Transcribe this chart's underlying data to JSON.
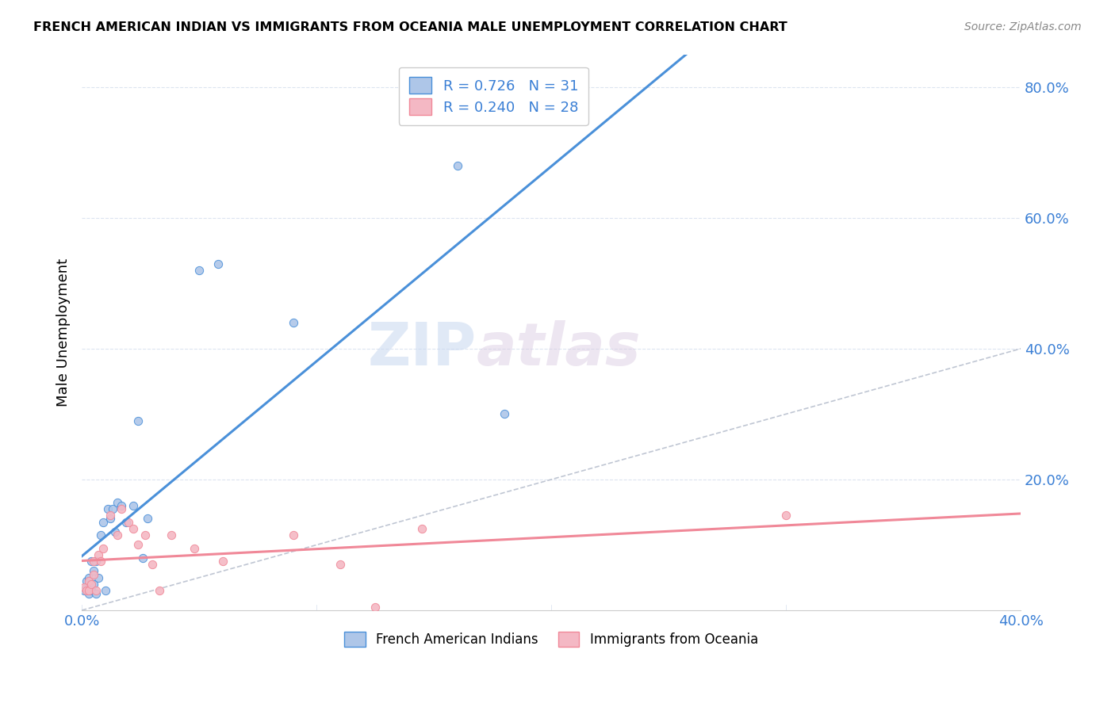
{
  "title": "FRENCH AMERICAN INDIAN VS IMMIGRANTS FROM OCEANIA MALE UNEMPLOYMENT CORRELATION CHART",
  "source": "Source: ZipAtlas.com",
  "ylabel": "Male Unemployment",
  "xlim": [
    0.0,
    0.4
  ],
  "ylim": [
    0.0,
    0.85
  ],
  "xticks": [
    0.0,
    0.1,
    0.2,
    0.3,
    0.4
  ],
  "xticklabels": [
    "0.0%",
    "",
    "",
    "",
    "40.0%"
  ],
  "yticks": [
    0.2,
    0.4,
    0.6,
    0.8
  ],
  "yticklabels": [
    "20.0%",
    "40.0%",
    "60.0%",
    "80.0%"
  ],
  "R_blue": 0.726,
  "N_blue": 31,
  "R_pink": 0.24,
  "N_pink": 28,
  "color_blue": "#aec6e8",
  "color_pink": "#f4b8c4",
  "line_blue": "#4a90d9",
  "line_pink": "#f08898",
  "line_diag": "#b0b8c8",
  "legend_text_color": "#3a7fd5",
  "blue_x": [
    0.001,
    0.002,
    0.002,
    0.003,
    0.003,
    0.004,
    0.004,
    0.005,
    0.005,
    0.006,
    0.006,
    0.007,
    0.008,
    0.009,
    0.01,
    0.011,
    0.012,
    0.013,
    0.014,
    0.015,
    0.017,
    0.019,
    0.022,
    0.024,
    0.026,
    0.028,
    0.05,
    0.058,
    0.09,
    0.16,
    0.18
  ],
  "blue_y": [
    0.03,
    0.035,
    0.045,
    0.025,
    0.05,
    0.03,
    0.075,
    0.04,
    0.06,
    0.025,
    0.075,
    0.05,
    0.115,
    0.135,
    0.03,
    0.155,
    0.14,
    0.155,
    0.12,
    0.165,
    0.16,
    0.135,
    0.16,
    0.29,
    0.08,
    0.14,
    0.52,
    0.53,
    0.44,
    0.68,
    0.3
  ],
  "pink_x": [
    0.001,
    0.002,
    0.003,
    0.003,
    0.004,
    0.005,
    0.005,
    0.006,
    0.007,
    0.008,
    0.009,
    0.012,
    0.015,
    0.017,
    0.02,
    0.022,
    0.024,
    0.027,
    0.03,
    0.033,
    0.038,
    0.048,
    0.06,
    0.09,
    0.11,
    0.125,
    0.145,
    0.3
  ],
  "pink_y": [
    0.035,
    0.03,
    0.045,
    0.03,
    0.04,
    0.075,
    0.055,
    0.03,
    0.085,
    0.075,
    0.095,
    0.145,
    0.115,
    0.155,
    0.135,
    0.125,
    0.1,
    0.115,
    0.07,
    0.03,
    0.115,
    0.095,
    0.075,
    0.115,
    0.07,
    0.005,
    0.125,
    0.145
  ],
  "watermark_left": "ZIP",
  "watermark_right": "atlas",
  "background_color": "#ffffff",
  "grid_color": "#dce4f0",
  "legend_label_blue": "French American Indians",
  "legend_label_pink": "Immigrants from Oceania"
}
